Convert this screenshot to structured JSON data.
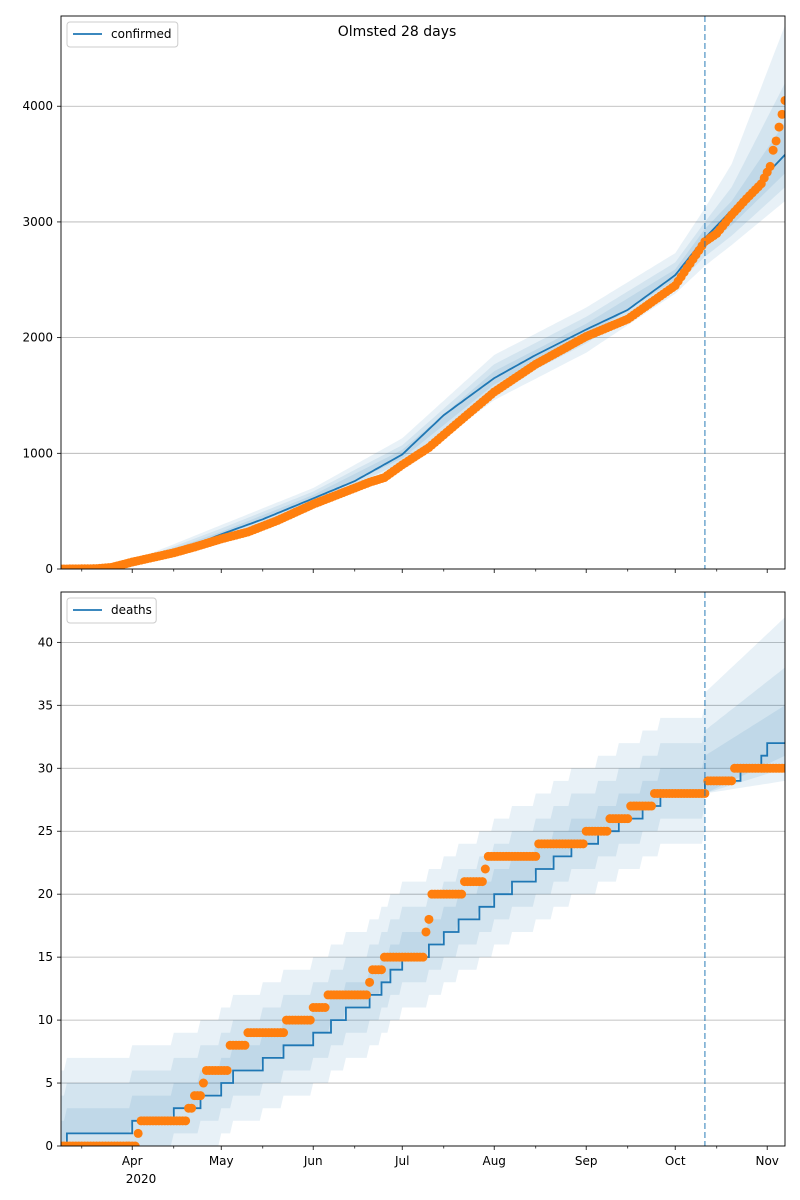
{
  "chart_data": [
    {
      "type": "line",
      "title": "Olmsted 28 days",
      "legend": {
        "entries": [
          "confirmed"
        ],
        "placement": "top-left"
      },
      "ylim": [
        0,
        4780
      ],
      "yticks": [
        0,
        1000,
        2000,
        3000,
        4000
      ],
      "grid": "y",
      "vline_date": "2020-10-11",
      "model_line": {
        "name": "confirmed",
        "color": "#1f77b4",
        "points": [
          [
            "2020-03-08",
            0
          ],
          [
            "2020-03-25",
            4
          ],
          [
            "2020-04-01",
            40
          ],
          [
            "2020-04-15",
            140
          ],
          [
            "2020-05-01",
            300
          ],
          [
            "2020-05-15",
            430
          ],
          [
            "2020-06-01",
            610
          ],
          [
            "2020-06-15",
            760
          ],
          [
            "2020-07-01",
            990
          ],
          [
            "2020-07-15",
            1330
          ],
          [
            "2020-08-01",
            1650
          ],
          [
            "2020-08-15",
            1850
          ],
          [
            "2020-09-01",
            2070
          ],
          [
            "2020-09-15",
            2240
          ],
          [
            "2020-10-01",
            2540
          ],
          [
            "2020-10-11",
            2860
          ],
          [
            "2020-11-07",
            3580
          ]
        ]
      },
      "bands": [
        {
          "lower": [
            [
              "2020-03-08",
              0
            ],
            [
              "2020-04-01",
              20
            ],
            [
              "2020-05-01",
              240
            ],
            [
              "2020-06-01",
              540
            ],
            [
              "2020-07-01",
              870
            ],
            [
              "2020-08-01",
              1460
            ],
            [
              "2020-09-01",
              1870
            ],
            [
              "2020-10-01",
              2380
            ],
            [
              "2020-10-11",
              2620
            ],
            [
              "2020-10-20",
              2800
            ],
            [
              "2020-11-07",
              3180
            ]
          ],
          "upper": [
            [
              "2020-03-08",
              0
            ],
            [
              "2020-04-01",
              70
            ],
            [
              "2020-05-01",
              380
            ],
            [
              "2020-06-01",
              700
            ],
            [
              "2020-07-01",
              1130
            ],
            [
              "2020-08-01",
              1850
            ],
            [
              "2020-09-01",
              2260
            ],
            [
              "2020-10-01",
              2730
            ],
            [
              "2020-10-11",
              3120
            ],
            [
              "2020-10-20",
              3500
            ],
            [
              "2020-11-07",
              4700
            ]
          ]
        },
        {
          "lower": [
            [
              "2020-03-08",
              0
            ],
            [
              "2020-04-01",
              28
            ],
            [
              "2020-05-01",
              265
            ],
            [
              "2020-06-01",
              570
            ],
            [
              "2020-07-01",
              920
            ],
            [
              "2020-08-01",
              1540
            ],
            [
              "2020-09-01",
              1950
            ],
            [
              "2020-10-01",
              2450
            ],
            [
              "2020-10-11",
              2700
            ],
            [
              "2020-10-20",
              2880
            ],
            [
              "2020-11-07",
              3300
            ]
          ],
          "upper": [
            [
              "2020-03-08",
              0
            ],
            [
              "2020-04-01",
              58
            ],
            [
              "2020-05-01",
              350
            ],
            [
              "2020-06-01",
              670
            ],
            [
              "2020-07-01",
              1070
            ],
            [
              "2020-08-01",
              1770
            ],
            [
              "2020-09-01",
              2180
            ],
            [
              "2020-10-01",
              2650
            ],
            [
              "2020-10-11",
              3000
            ],
            [
              "2020-10-20",
              3300
            ],
            [
              "2020-11-07",
              4200
            ]
          ]
        },
        {
          "lower": [
            [
              "2020-03-08",
              0
            ],
            [
              "2020-04-01",
              34
            ],
            [
              "2020-05-01",
              283
            ],
            [
              "2020-06-01",
              592
            ],
            [
              "2020-07-01",
              955
            ],
            [
              "2020-08-01",
              1595
            ],
            [
              "2020-09-01",
              2010
            ],
            [
              "2020-10-01",
              2500
            ],
            [
              "2020-10-11",
              2780
            ],
            [
              "2020-10-20",
              2970
            ],
            [
              "2020-11-07",
              3420
            ]
          ],
          "upper": [
            [
              "2020-03-08",
              0
            ],
            [
              "2020-04-01",
              50
            ],
            [
              "2020-05-01",
              322
            ],
            [
              "2020-06-01",
              640
            ],
            [
              "2020-07-01",
              1030
            ],
            [
              "2020-08-01",
              1710
            ],
            [
              "2020-09-01",
              2120
            ],
            [
              "2020-10-01",
              2590
            ],
            [
              "2020-10-11",
              2940
            ],
            [
              "2020-10-20",
              3180
            ],
            [
              "2020-11-07",
              3860
            ]
          ]
        }
      ],
      "observed": {
        "color": "#ff7f0e",
        "points": [
          [
            "2020-03-08",
            0
          ],
          [
            "2020-03-20",
            3
          ],
          [
            "2020-03-25",
            14
          ],
          [
            "2020-04-01",
            60
          ],
          [
            "2020-04-08",
            100
          ],
          [
            "2020-04-15",
            140
          ],
          [
            "2020-04-22",
            190
          ],
          [
            "2020-05-01",
            260
          ],
          [
            "2020-05-10",
            320
          ],
          [
            "2020-05-20",
            420
          ],
          [
            "2020-06-01",
            560
          ],
          [
            "2020-06-10",
            650
          ],
          [
            "2020-06-20",
            750
          ],
          [
            "2020-06-25",
            790
          ],
          [
            "2020-07-01",
            900
          ],
          [
            "2020-07-10",
            1050
          ],
          [
            "2020-07-20",
            1270
          ],
          [
            "2020-08-01",
            1530
          ],
          [
            "2020-08-15",
            1770
          ],
          [
            "2020-09-01",
            2010
          ],
          [
            "2020-09-15",
            2160
          ],
          [
            "2020-10-01",
            2450
          ],
          [
            "2020-10-11",
            2830
          ],
          [
            "2020-10-15",
            2900
          ],
          [
            "2020-10-20",
            3060
          ],
          [
            "2020-10-25",
            3200
          ],
          [
            "2020-10-30",
            3330
          ],
          [
            "2020-11-02",
            3480
          ],
          [
            "2020-11-03",
            3620
          ],
          [
            "2020-11-04",
            3700
          ],
          [
            "2020-11-05",
            3820
          ],
          [
            "2020-11-06",
            3930
          ],
          [
            "2020-11-07",
            4050
          ]
        ]
      }
    },
    {
      "type": "line",
      "title": "",
      "legend": {
        "entries": [
          "deaths"
        ],
        "placement": "top-left"
      },
      "ylim": [
        0,
        44
      ],
      "yticks": [
        0,
        5,
        10,
        15,
        20,
        25,
        30,
        35,
        40
      ],
      "grid": "y",
      "vline_date": "2020-10-11",
      "model_steps": {
        "name": "deaths",
        "color": "#1f77b4",
        "steps": [
          [
            "2020-03-08",
            0
          ],
          [
            "2020-03-10",
            1
          ],
          [
            "2020-04-01",
            2
          ],
          [
            "2020-04-15",
            3
          ],
          [
            "2020-04-24",
            4
          ],
          [
            "2020-05-01",
            5
          ],
          [
            "2020-05-05",
            6
          ],
          [
            "2020-05-15",
            7
          ],
          [
            "2020-05-22",
            8
          ],
          [
            "2020-06-01",
            9
          ],
          [
            "2020-06-07",
            10
          ],
          [
            "2020-06-12",
            11
          ],
          [
            "2020-06-20",
            12
          ],
          [
            "2020-06-24",
            13
          ],
          [
            "2020-06-27",
            14
          ],
          [
            "2020-07-01",
            15
          ],
          [
            "2020-07-10",
            16
          ],
          [
            "2020-07-15",
            17
          ],
          [
            "2020-07-20",
            18
          ],
          [
            "2020-07-27",
            19
          ],
          [
            "2020-08-01",
            20
          ],
          [
            "2020-08-07",
            21
          ],
          [
            "2020-08-15",
            22
          ],
          [
            "2020-08-21",
            23
          ],
          [
            "2020-08-27",
            24
          ],
          [
            "2020-09-05",
            25
          ],
          [
            "2020-09-12",
            26
          ],
          [
            "2020-09-20",
            27
          ],
          [
            "2020-09-26",
            28
          ],
          [
            "2020-10-11",
            29
          ],
          [
            "2020-10-23",
            30
          ],
          [
            "2020-10-30",
            31
          ],
          [
            "2020-11-01",
            32
          ],
          [
            "2020-11-07",
            32
          ]
        ]
      },
      "band_offsets": [
        {
          "lower": [
            0,
            0
          ],
          "upper": [
            6,
            7
          ]
        },
        {
          "lower": [
            -4,
            -3
          ],
          "upper": [
            4,
            4
          ]
        },
        {
          "lower": [
            -2,
            -2
          ],
          "upper": [
            2,
            2
          ]
        }
      ],
      "bands_forecast": [
        {
          "lower": [
            [
              "2020-10-11",
              28
            ],
            [
              "2020-11-07",
              29
            ]
          ],
          "upper": [
            [
              "2020-10-11",
              36
            ],
            [
              "2020-11-07",
              42
            ]
          ]
        },
        {
          "lower": [
            [
              "2020-10-11",
              28
            ],
            [
              "2020-11-07",
              30
            ]
          ],
          "upper": [
            [
              "2020-10-11",
              33
            ],
            [
              "2020-11-07",
              38
            ]
          ]
        },
        {
          "lower": [
            [
              "2020-10-11",
              28
            ],
            [
              "2020-11-07",
              31
            ]
          ],
          "upper": [
            [
              "2020-10-11",
              31
            ],
            [
              "2020-11-07",
              35
            ]
          ]
        }
      ],
      "observed": {
        "color": "#ff7f0e",
        "steps": [
          [
            "2020-03-08",
            0
          ],
          [
            "2020-04-03",
            1
          ],
          [
            "2020-04-04",
            2
          ],
          [
            "2020-04-20",
            3
          ],
          [
            "2020-04-22",
            4
          ],
          [
            "2020-04-25",
            5
          ],
          [
            "2020-04-26",
            6
          ],
          [
            "2020-05-04",
            8
          ],
          [
            "2020-05-10",
            9
          ],
          [
            "2020-05-23",
            10
          ],
          [
            "2020-06-01",
            11
          ],
          [
            "2020-06-06",
            12
          ],
          [
            "2020-06-20",
            13
          ],
          [
            "2020-06-21",
            14
          ],
          [
            "2020-06-25",
            15
          ],
          [
            "2020-07-09",
            17
          ],
          [
            "2020-07-10",
            18
          ],
          [
            "2020-07-11",
            20
          ],
          [
            "2020-07-22",
            21
          ],
          [
            "2020-07-29",
            22
          ],
          [
            "2020-07-30",
            23
          ],
          [
            "2020-08-16",
            24
          ],
          [
            "2020-09-01",
            25
          ],
          [
            "2020-09-09",
            26
          ],
          [
            "2020-09-16",
            27
          ],
          [
            "2020-09-24",
            28
          ],
          [
            "2020-10-12",
            29
          ],
          [
            "2020-10-21",
            30
          ],
          [
            "2020-11-07",
            30
          ]
        ]
      }
    }
  ],
  "x_axis": {
    "start": "2020-03-08",
    "end": "2020-11-07",
    "major_ticks": [
      {
        "date": "2020-04-01",
        "label": "Apr"
      },
      {
        "date": "2020-05-01",
        "label": "May"
      },
      {
        "date": "2020-06-01",
        "label": "Jun"
      },
      {
        "date": "2020-07-01",
        "label": "Jul"
      },
      {
        "date": "2020-08-01",
        "label": "Aug"
      },
      {
        "date": "2020-09-01",
        "label": "Sep"
      },
      {
        "date": "2020-10-01",
        "label": "Oct"
      },
      {
        "date": "2020-11-01",
        "label": "Nov"
      }
    ],
    "year_label": "2020"
  }
}
